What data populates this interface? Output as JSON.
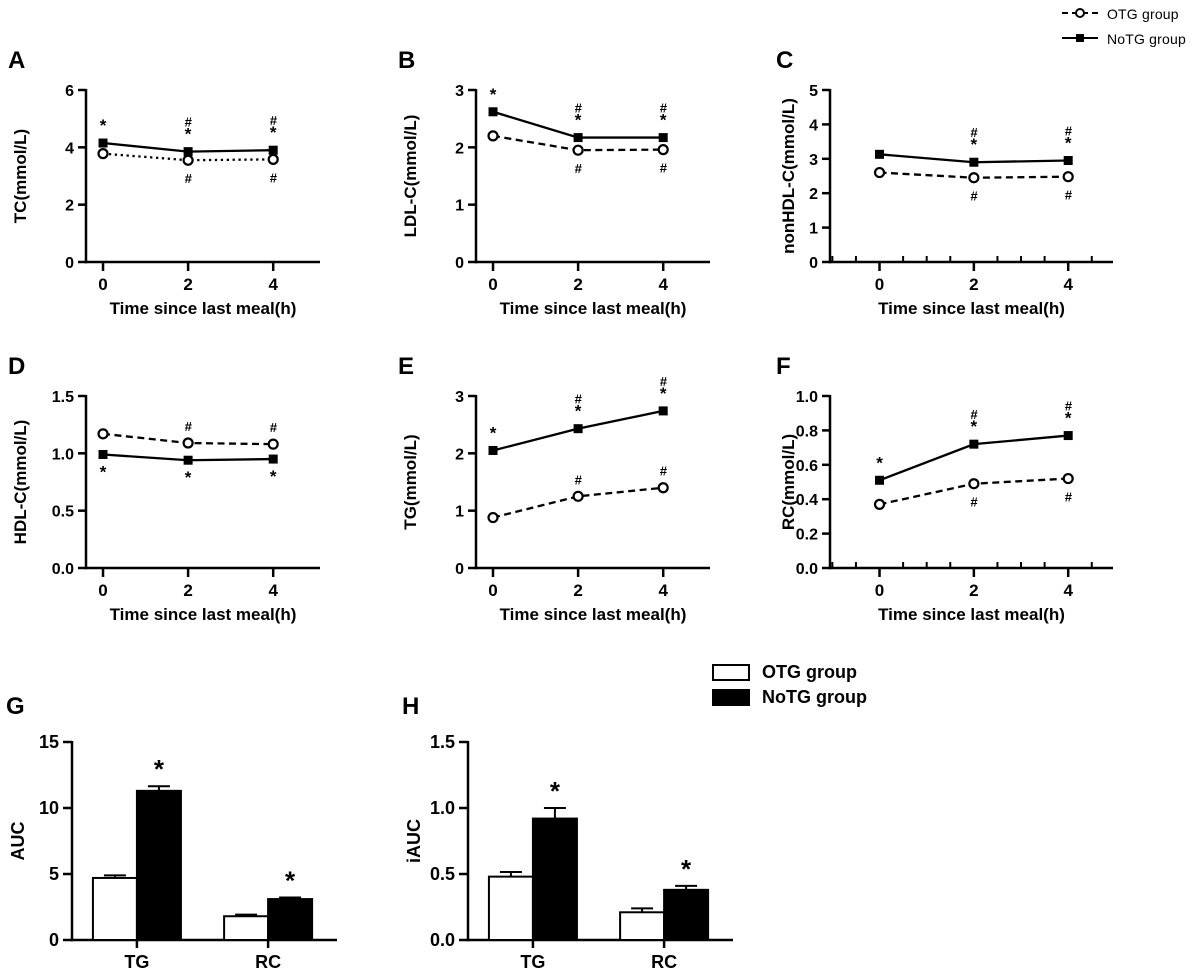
{
  "colors": {
    "ink": "#000000",
    "background": "#ffffff"
  },
  "legend_line": {
    "items": [
      {
        "label": "OTG group",
        "marker": "open-circle",
        "line": "dashed"
      },
      {
        "label": "NoTG group",
        "marker": "filled-square",
        "line": "solid"
      }
    ]
  },
  "legend_bar": {
    "items": [
      {
        "label": "OTG group",
        "fill": "#ffffff"
      },
      {
        "label": "NoTG group",
        "fill": "#000000"
      }
    ]
  },
  "chart_data": [
    {
      "panel": "A",
      "type": "line",
      "ylabel": "TC(mmol/L)",
      "xlabel": "Time since last meal(h)",
      "x": [
        0,
        2,
        4
      ],
      "xtick_labels": [
        "0",
        "2",
        "4"
      ],
      "xlim": [
        -0.4,
        5.1
      ],
      "ylim": [
        0,
        6
      ],
      "ytick_vals": [
        0,
        2,
        4,
        6
      ],
      "ytick_labels": [
        "0",
        "2",
        "4",
        "6"
      ],
      "x_minor_step": null,
      "series": [
        {
          "name": "NoTG group",
          "line": "solid",
          "marker": "filled-square",
          "values": [
            4.15,
            3.85,
            3.9
          ],
          "ann": [
            {
              "t": [
                "*"
              ],
              "pos": "above"
            },
            {
              "t": [
                "#",
                "*"
              ],
              "pos": "above"
            },
            {
              "t": [
                "#",
                "*"
              ],
              "pos": "above"
            }
          ]
        },
        {
          "name": "OTG group",
          "line": "dotted",
          "marker": "open-circle",
          "values": [
            3.78,
            3.55,
            3.58
          ],
          "ann": [
            {
              "t": [],
              "pos": "below"
            },
            {
              "t": [
                "#"
              ],
              "pos": "below"
            },
            {
              "t": [
                "#"
              ],
              "pos": "below"
            }
          ]
        }
      ]
    },
    {
      "panel": "B",
      "type": "line",
      "ylabel": "LDL-C(mmol/L)",
      "xlabel": "Time since last meal(h)",
      "x": [
        0,
        2,
        4
      ],
      "xtick_labels": [
        "0",
        "2",
        "4"
      ],
      "xlim": [
        -0.4,
        5.1
      ],
      "ylim": [
        0,
        3
      ],
      "ytick_vals": [
        0,
        1,
        2,
        3
      ],
      "ytick_labels": [
        "0",
        "1",
        "2",
        "3"
      ],
      "x_minor_step": null,
      "series": [
        {
          "name": "NoTG group",
          "line": "solid",
          "marker": "filled-square",
          "values": [
            2.62,
            2.17,
            2.17
          ],
          "ann": [
            {
              "t": [
                "*"
              ],
              "pos": "above"
            },
            {
              "t": [
                "#",
                "*"
              ],
              "pos": "above"
            },
            {
              "t": [
                "#",
                "*"
              ],
              "pos": "above"
            }
          ]
        },
        {
          "name": "OTG group",
          "line": "dashed",
          "marker": "open-circle",
          "values": [
            2.2,
            1.95,
            1.96
          ],
          "ann": [
            {
              "t": [],
              "pos": "below"
            },
            {
              "t": [
                "#"
              ],
              "pos": "below"
            },
            {
              "t": [
                "#"
              ],
              "pos": "below"
            }
          ]
        }
      ]
    },
    {
      "panel": "C",
      "type": "line",
      "ylabel": "nonHDL-C(mmol/L)",
      "xlabel": "Time since last meal(h)",
      "x": [
        0,
        2,
        4
      ],
      "xtick_labels": [
        "0",
        "2",
        "4"
      ],
      "xlim": [
        -1.05,
        4.95
      ],
      "ylim": [
        0,
        5
      ],
      "ytick_vals": [
        0,
        1,
        2,
        3,
        4,
        5
      ],
      "ytick_labels": [
        "0",
        "1",
        "2",
        "3",
        "4",
        "5"
      ],
      "x_minor_step": 0.5,
      "series": [
        {
          "name": "NoTG group",
          "line": "solid",
          "marker": "filled-square",
          "values": [
            3.13,
            2.9,
            2.95
          ],
          "ann": [
            {
              "t": [],
              "pos": "above"
            },
            {
              "t": [
                "#",
                "*"
              ],
              "pos": "above"
            },
            {
              "t": [
                "#",
                "*"
              ],
              "pos": "above"
            }
          ]
        },
        {
          "name": "OTG group",
          "line": "dashed",
          "marker": "open-circle",
          "values": [
            2.6,
            2.45,
            2.48
          ],
          "ann": [
            {
              "t": [],
              "pos": "below"
            },
            {
              "t": [
                "#"
              ],
              "pos": "below"
            },
            {
              "t": [
                "#"
              ],
              "pos": "below"
            }
          ]
        }
      ]
    },
    {
      "panel": "D",
      "type": "line",
      "ylabel": "HDL-C(mmol/L)",
      "xlabel": "Time since last meal(h)",
      "x": [
        0,
        2,
        4
      ],
      "xtick_labels": [
        "0",
        "2",
        "4"
      ],
      "xlim": [
        -0.4,
        5.1
      ],
      "ylim": [
        0,
        1.5
      ],
      "ytick_vals": [
        0,
        0.5,
        1.0,
        1.5
      ],
      "ytick_labels": [
        "0.0",
        "0.5",
        "1.0",
        "1.5"
      ],
      "x_minor_step": null,
      "series": [
        {
          "name": "OTG group",
          "line": "dashed",
          "marker": "open-circle",
          "values": [
            1.17,
            1.09,
            1.08
          ],
          "ann": [
            {
              "t": [],
              "pos": "above"
            },
            {
              "t": [
                "#"
              ],
              "pos": "above"
            },
            {
              "t": [
                "#"
              ],
              "pos": "above"
            }
          ]
        },
        {
          "name": "NoTG group",
          "line": "solid",
          "marker": "filled-square",
          "values": [
            0.99,
            0.94,
            0.95
          ],
          "ann": [
            {
              "t": [
                "*"
              ],
              "pos": "below"
            },
            {
              "t": [
                "*"
              ],
              "pos": "below"
            },
            {
              "t": [
                "*"
              ],
              "pos": "below"
            }
          ]
        }
      ]
    },
    {
      "panel": "E",
      "type": "line",
      "ylabel": "TG(mmol/L)",
      "xlabel": "Time since last meal(h)",
      "x": [
        0,
        2,
        4
      ],
      "xtick_labels": [
        "0",
        "2",
        "4"
      ],
      "xlim": [
        -0.4,
        5.1
      ],
      "ylim": [
        0,
        3
      ],
      "ytick_vals": [
        0,
        1,
        2,
        3
      ],
      "ytick_labels": [
        "0",
        "1",
        "2",
        "3"
      ],
      "x_minor_step": null,
      "series": [
        {
          "name": "NoTG group",
          "line": "solid",
          "marker": "filled-square",
          "values": [
            2.05,
            2.43,
            2.74
          ],
          "ann": [
            {
              "t": [
                "*"
              ],
              "pos": "above"
            },
            {
              "t": [
                "#",
                "*"
              ],
              "pos": "above"
            },
            {
              "t": [
                "#",
                "*"
              ],
              "pos": "above"
            }
          ]
        },
        {
          "name": "OTG group",
          "line": "dashed",
          "marker": "open-circle",
          "values": [
            0.88,
            1.25,
            1.4
          ],
          "ann": [
            {
              "t": [],
              "pos": "above"
            },
            {
              "t": [
                "#"
              ],
              "pos": "above"
            },
            {
              "t": [
                "#"
              ],
              "pos": "above"
            }
          ]
        }
      ]
    },
    {
      "panel": "F",
      "type": "line",
      "ylabel": "RC(mmol/L)",
      "xlabel": "Time since last meal(h)",
      "x": [
        0,
        2,
        4
      ],
      "xtick_labels": [
        "0",
        "2",
        "4"
      ],
      "xlim": [
        -1.05,
        4.95
      ],
      "ylim": [
        0,
        1.0
      ],
      "ytick_vals": [
        0,
        0.2,
        0.4,
        0.6,
        0.8,
        1.0
      ],
      "ytick_labels": [
        "0.0",
        "0.2",
        "0.4",
        "0.6",
        "0.8",
        "1.0"
      ],
      "x_minor_step": 0.5,
      "series": [
        {
          "name": "NoTG group",
          "line": "solid",
          "marker": "filled-square",
          "values": [
            0.51,
            0.72,
            0.77
          ],
          "ann": [
            {
              "t": [
                "*"
              ],
              "pos": "above"
            },
            {
              "t": [
                "#",
                "*"
              ],
              "pos": "above"
            },
            {
              "t": [
                "#",
                "*"
              ],
              "pos": "above"
            }
          ]
        },
        {
          "name": "OTG group",
          "line": "dashed",
          "marker": "open-circle",
          "values": [
            0.37,
            0.49,
            0.52
          ],
          "ann": [
            {
              "t": [],
              "pos": "below"
            },
            {
              "t": [
                "#"
              ],
              "pos": "below"
            },
            {
              "t": [
                "#"
              ],
              "pos": "below"
            }
          ]
        }
      ]
    },
    {
      "panel": "G",
      "type": "bar",
      "ylabel": "AUC",
      "xlabel": "",
      "categories": [
        "TG",
        "RC"
      ],
      "ylim": [
        0,
        15
      ],
      "ytick_vals": [
        0,
        5,
        10,
        15
      ],
      "ytick_labels": [
        "0",
        "5",
        "10",
        "15"
      ],
      "series": [
        {
          "name": "OTG group",
          "fill": "#ffffff",
          "values": [
            4.7,
            1.8
          ],
          "err": [
            0.2,
            0.12
          ],
          "ann": [
            "",
            ""
          ]
        },
        {
          "name": "NoTG group",
          "fill": "#000000",
          "values": [
            11.3,
            3.1
          ],
          "err": [
            0.35,
            0.12
          ],
          "ann": [
            "*",
            "*"
          ]
        }
      ]
    },
    {
      "panel": "H",
      "type": "bar",
      "ylabel": "iAUC",
      "xlabel": "",
      "categories": [
        "TG",
        "RC"
      ],
      "ylim": [
        0,
        1.5
      ],
      "ytick_vals": [
        0,
        0.5,
        1.0,
        1.5
      ],
      "ytick_labels": [
        "0.0",
        "0.5",
        "1.0",
        "1.5"
      ],
      "series": [
        {
          "name": "OTG group",
          "fill": "#ffffff",
          "values": [
            0.48,
            0.21
          ],
          "err": [
            0.035,
            0.03
          ],
          "ann": [
            "",
            ""
          ]
        },
        {
          "name": "NoTG group",
          "fill": "#000000",
          "values": [
            0.92,
            0.38
          ],
          "err": [
            0.08,
            0.03
          ],
          "ann": [
            "*",
            "*"
          ]
        }
      ]
    }
  ]
}
